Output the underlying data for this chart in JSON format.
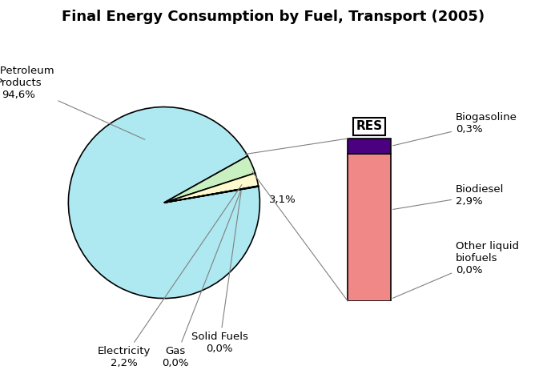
{
  "title": "Final Energy Consumption by Fuel, Transport (2005)",
  "pie_values": [
    94.6,
    3.1,
    2.2,
    0.05,
    0.05
  ],
  "pie_colors": [
    "#aee8f0",
    "#c8f0c0",
    "#fffacd",
    "#d8d8d8",
    "#c8c8c8"
  ],
  "bar_biodiesel": 2.9,
  "bar_biogasoline": 0.3,
  "bar_color_main": "#f08888",
  "bar_color_top": "#4b0082",
  "background_color": "#ffffff",
  "title_fontsize": 13,
  "annotation_fontsize": 9.5
}
